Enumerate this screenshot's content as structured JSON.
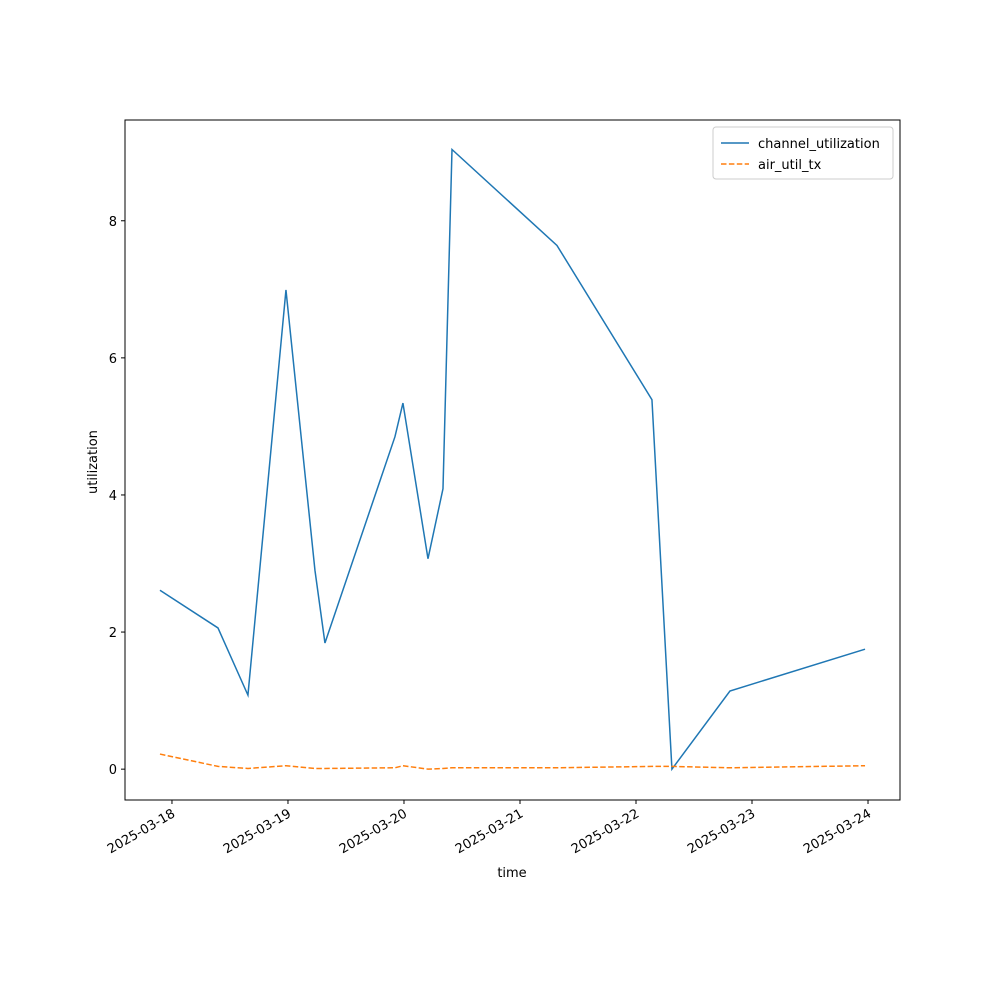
{
  "chart_data": {
    "type": "line",
    "x_label": "time",
    "y_label": "utilization",
    "x": [
      "2025-03-17T21:31",
      "2025-03-18T09:31",
      "2025-03-18T15:43",
      "2025-03-18T23:35",
      "2025-03-19T05:35",
      "2025-03-19T07:39",
      "2025-03-19T22:08",
      "2025-03-19T23:47",
      "2025-03-20T04:58",
      "2025-03-20T08:04",
      "2025-03-20T09:56",
      "2025-03-21T07:39",
      "2025-03-22T03:18",
      "2025-03-22T07:26",
      "2025-03-22T19:26",
      "2025-03-23T23:23"
    ],
    "series": [
      {
        "name": "channel_utilization",
        "color": "#1f77b4",
        "dash": "solid",
        "values": [
          2.61,
          2.06,
          1.08,
          6.99,
          2.9,
          1.84,
          4.85,
          5.34,
          3.07,
          4.09,
          9.04,
          7.64,
          5.39,
          0.0,
          1.14,
          1.75
        ]
      },
      {
        "name": "air_util_tx",
        "color": "#ff7f0e",
        "dash": "dashed",
        "values": [
          0.22,
          0.04,
          0.01,
          0.05,
          0.01,
          0.01,
          0.02,
          0.05,
          0.0,
          0.01,
          0.02,
          0.02,
          0.04,
          0.04,
          0.02,
          0.05
        ]
      }
    ],
    "xlim": [
      "2025-03-17T14:17",
      "2025-03-24T06:37"
    ],
    "xticks": [
      "2025-03-18",
      "2025-03-19",
      "2025-03-20",
      "2025-03-21",
      "2025-03-22",
      "2025-03-23",
      "2025-03-24"
    ],
    "ylim": [
      -0.45,
      9.47
    ],
    "yticks": [
      0,
      2,
      4,
      6,
      8
    ],
    "grid": false,
    "legend": "upper right"
  }
}
